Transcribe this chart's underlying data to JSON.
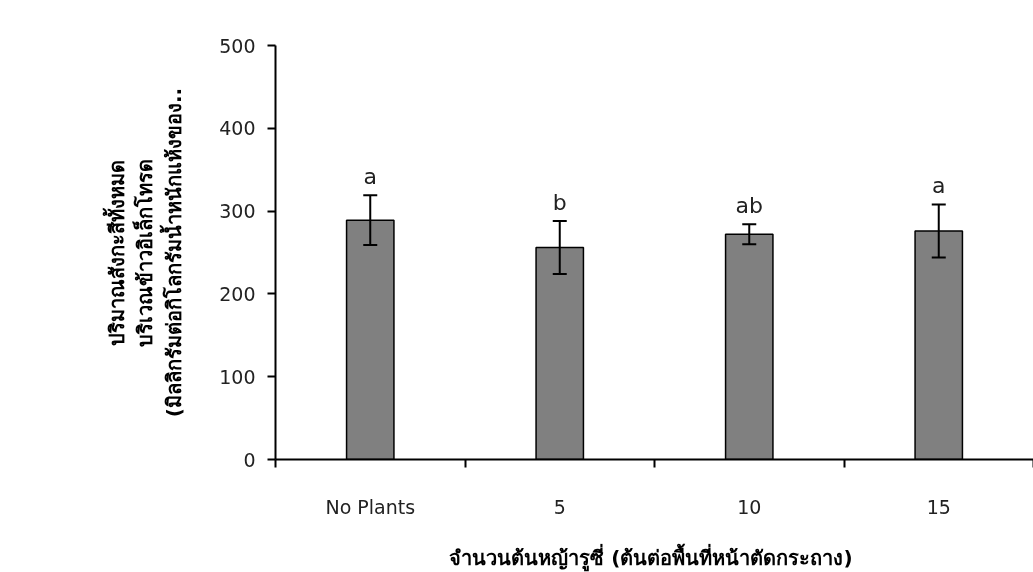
{
  "chart_data": {
    "type": "bar",
    "xlabel": "จำนวนต้นหญ้ารูซี่  (ต้นต่อพื้นที่หน้าตัดกระถาง)",
    "ylabel": "ปริมาณสังกะสีทั้งหมด\nบริเวณข้าวอิเล็กโทรด\n(มิลลิกรัมต่อกิโลกรัมน้ำหนักแห้งของ..",
    "categories": [
      "No Plants",
      "5",
      "10",
      "15"
    ],
    "values": [
      289,
      256,
      272,
      276
    ],
    "errors": [
      30,
      32,
      12,
      32
    ],
    "color": "#808080",
    "ylim": [
      0,
      500
    ],
    "yticks": [
      0,
      100,
      200,
      300,
      400,
      500
    ],
    "grid": false,
    "annotations": [
      {
        "text": "a",
        "x": "No Plants",
        "y": 289
      },
      {
        "text": "b",
        "x": "5",
        "y": 256
      },
      {
        "text": "ab",
        "x": "10",
        "y": 272
      },
      {
        "text": "a",
        "x": "15",
        "y": 276
      }
    ]
  }
}
